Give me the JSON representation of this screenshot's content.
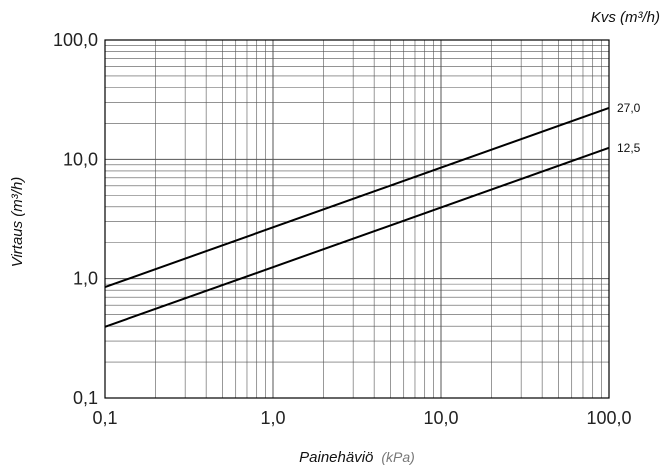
{
  "chart_data": {
    "type": "line",
    "legend_title": "Kvs (m³/h)",
    "xlabel": "Painehäviö",
    "xlabel_unit": "(kPa)",
    "ylabel": "Virtaus (m³/h)",
    "xscale": "log",
    "yscale": "log",
    "xlim": [
      0.1,
      100
    ],
    "ylim": [
      0.1,
      100
    ],
    "grid": true,
    "x_ticks": [
      {
        "value": 0.1,
        "label": "0,1"
      },
      {
        "value": 1,
        "label": "1,0"
      },
      {
        "value": 10,
        "label": "10,0"
      },
      {
        "value": 100,
        "label": "100,0"
      }
    ],
    "y_ticks": [
      {
        "value": 0.1,
        "label": "0,1"
      },
      {
        "value": 1,
        "label": "1,0"
      },
      {
        "value": 10,
        "label": "10,0"
      },
      {
        "value": 100,
        "label": "100,0"
      }
    ],
    "series": [
      {
        "name": "27,0",
        "x": [
          0.1,
          100
        ],
        "y": [
          0.85,
          27.0
        ]
      },
      {
        "name": "12,5",
        "x": [
          0.1,
          100
        ],
        "y": [
          0.395,
          12.5
        ]
      }
    ]
  }
}
